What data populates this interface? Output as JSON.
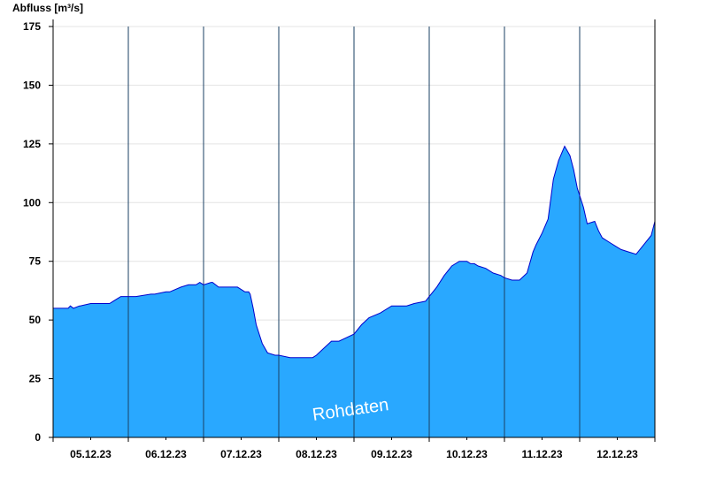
{
  "chart_data": {
    "type": "area",
    "ylabel": "Abfluss [m³/s]",
    "ylim": [
      0,
      175
    ],
    "yticks": [
      0,
      25,
      50,
      75,
      100,
      125,
      150,
      175
    ],
    "xlim": [
      0,
      8
    ],
    "day_labels": [
      "05.12.23",
      "06.12.23",
      "07.12.23",
      "08.12.23",
      "09.12.23",
      "10.12.23",
      "11.12.23",
      "12.12.23"
    ],
    "grid": "horizontal",
    "watermark": "Rohdaten",
    "colors": {
      "fill": "#29a8ff",
      "line": "#0000cc",
      "grid": "#e4e4e4",
      "separator": "#1a3f63"
    },
    "series": [
      {
        "x": [
          0,
          0.2,
          0.23,
          0.27,
          0.35,
          0.36,
          0.5,
          0.52,
          0.75,
          0.85,
          0.9,
          1.0,
          1.1,
          1.3,
          1.35,
          1.5,
          1.55,
          1.7,
          1.8,
          1.9,
          1.95,
          2.0,
          2.1,
          2.12,
          2.2,
          2.3,
          2.45,
          2.55,
          2.6,
          2.62,
          2.66,
          2.7,
          2.78,
          2.85,
          2.95,
          3.0,
          3.15,
          3.2,
          3.45,
          3.5,
          3.6,
          3.7,
          3.8,
          4.0,
          4.1,
          4.2,
          4.35,
          4.5,
          4.7,
          4.8,
          4.95,
          5.0,
          5.1,
          5.2,
          5.3,
          5.4,
          5.5,
          5.55,
          5.6,
          5.65,
          5.75,
          5.85,
          5.95,
          6.0,
          6.1,
          6.2,
          6.3,
          6.38,
          6.42,
          6.5,
          6.58,
          6.65,
          6.72,
          6.8,
          6.87,
          6.92,
          6.97,
          7.05,
          7.1,
          7.2,
          7.25,
          7.3,
          7.4,
          7.5,
          7.55,
          7.65,
          7.75,
          7.85,
          7.95,
          8.0
        ],
        "values": [
          55,
          55,
          56,
          55,
          56,
          56,
          57,
          57,
          57,
          59,
          60,
          60,
          60,
          61,
          61,
          62,
          62,
          64,
          65,
          65,
          66,
          65,
          66,
          66,
          64,
          64,
          64,
          62,
          62,
          61,
          55,
          48,
          40,
          36,
          35,
          35,
          34,
          34,
          34,
          35,
          38,
          41,
          41,
          44,
          48,
          51,
          53,
          56,
          56,
          57,
          58,
          60,
          64,
          69,
          73,
          75,
          75,
          74,
          74,
          73,
          72,
          70,
          69,
          68,
          67,
          67,
          70,
          79,
          82,
          87,
          93,
          110,
          118,
          124,
          120,
          114,
          106,
          98,
          91,
          92,
          88,
          85,
          83,
          81,
          80,
          79,
          78,
          82,
          86,
          92
        ]
      }
    ]
  }
}
